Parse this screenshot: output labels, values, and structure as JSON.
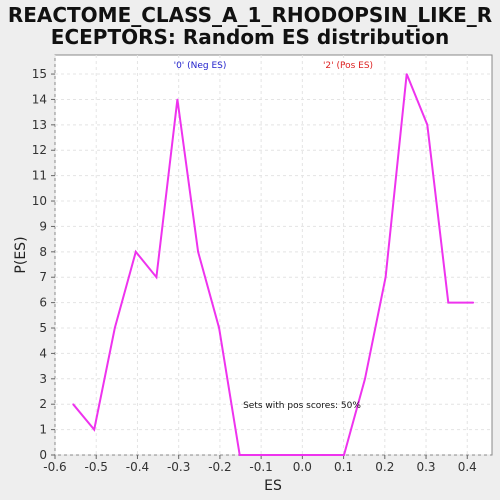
{
  "chart_data": {
    "type": "line",
    "title_line1": "REACTOME_CLASS_A_1_RHODOPSIN_LIKE_R",
    "title_line2": "ECEPTORS: Random ES distribution",
    "xlabel": "ES",
    "ylabel": "P(ES)",
    "xlim": [
      -0.6,
      0.46
    ],
    "ylim": [
      0,
      15.75
    ],
    "x_ticks": [
      -0.6,
      -0.5,
      -0.4,
      -0.3,
      -0.2,
      -0.1,
      0.0,
      0.1,
      0.2,
      0.3,
      0.4
    ],
    "x_tick_labels": [
      "-0.6",
      "-0.5",
      "-0.4",
      "-0.3",
      "-0.2",
      "-0.1",
      "0.0",
      "0.1",
      "0.2",
      "0.3",
      "0.4"
    ],
    "y_ticks": [
      0,
      1,
      2,
      3,
      4,
      5,
      6,
      7,
      8,
      9,
      10,
      11,
      12,
      13,
      14,
      15
    ],
    "y_tick_labels": [
      "0",
      "1",
      "2",
      "3",
      "4",
      "5",
      "6",
      "7",
      "8",
      "9",
      "10",
      "11",
      "12",
      "13",
      "14",
      "15"
    ],
    "grid": true,
    "series": [
      {
        "color": "#ee33ee",
        "x": [
          -0.556,
          -0.505,
          -0.455,
          -0.404,
          -0.354,
          -0.303,
          -0.253,
          -0.202,
          -0.152,
          -0.101,
          -0.051,
          0.0,
          0.051,
          0.101,
          0.152,
          0.202,
          0.253,
          0.303,
          0.354,
          0.404,
          0.415
        ],
        "y": [
          2,
          1,
          5,
          8,
          7,
          14,
          8,
          5,
          0,
          0,
          0,
          0,
          0,
          0,
          3,
          7,
          15,
          13,
          6,
          6,
          6
        ]
      }
    ],
    "legend_neg": "'0' (Neg ES)",
    "legend_pos": "'2' (Pos ES)",
    "legend_neg_color": "#2222cc",
    "legend_pos_color": "#dd2222",
    "annotation": "Sets with pos scores: 50%"
  }
}
